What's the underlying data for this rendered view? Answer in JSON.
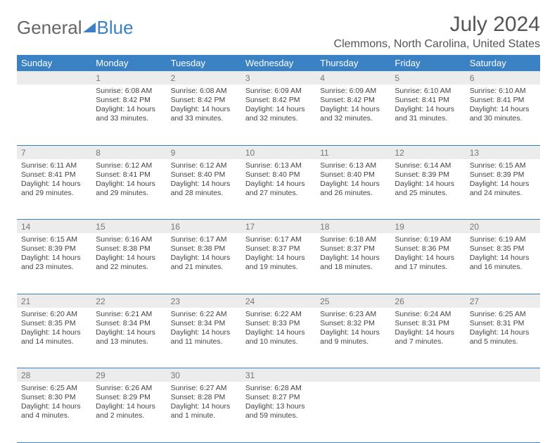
{
  "brand": {
    "general": "General",
    "blue": "Blue"
  },
  "title": {
    "month": "July 2024",
    "location": "Clemmons, North Carolina, United States"
  },
  "style": {
    "accent_color": "#3b82c4",
    "header_text_color": "#ffffff",
    "daynum_bg": "#ececec",
    "daynum_color": "#777777",
    "body_text_color": "#444444",
    "title_color": "#555555",
    "title_fontsize": 30,
    "location_fontsize": 16,
    "th_fontsize": 13,
    "cell_fontsize": 10.5
  },
  "weekdays": [
    "Sunday",
    "Monday",
    "Tuesday",
    "Wednesday",
    "Thursday",
    "Friday",
    "Saturday"
  ],
  "labels": {
    "sunrise": "Sunrise:",
    "sunset": "Sunset:",
    "daylight": "Daylight:"
  },
  "weeks": [
    [
      null,
      {
        "day": "1",
        "sunrise": "6:08 AM",
        "sunset": "8:42 PM",
        "daylight": "14 hours and 33 minutes."
      },
      {
        "day": "2",
        "sunrise": "6:08 AM",
        "sunset": "8:42 PM",
        "daylight": "14 hours and 33 minutes."
      },
      {
        "day": "3",
        "sunrise": "6:09 AM",
        "sunset": "8:42 PM",
        "daylight": "14 hours and 32 minutes."
      },
      {
        "day": "4",
        "sunrise": "6:09 AM",
        "sunset": "8:42 PM",
        "daylight": "14 hours and 32 minutes."
      },
      {
        "day": "5",
        "sunrise": "6:10 AM",
        "sunset": "8:41 PM",
        "daylight": "14 hours and 31 minutes."
      },
      {
        "day": "6",
        "sunrise": "6:10 AM",
        "sunset": "8:41 PM",
        "daylight": "14 hours and 30 minutes."
      }
    ],
    [
      {
        "day": "7",
        "sunrise": "6:11 AM",
        "sunset": "8:41 PM",
        "daylight": "14 hours and 29 minutes."
      },
      {
        "day": "8",
        "sunrise": "6:12 AM",
        "sunset": "8:41 PM",
        "daylight": "14 hours and 29 minutes."
      },
      {
        "day": "9",
        "sunrise": "6:12 AM",
        "sunset": "8:40 PM",
        "daylight": "14 hours and 28 minutes."
      },
      {
        "day": "10",
        "sunrise": "6:13 AM",
        "sunset": "8:40 PM",
        "daylight": "14 hours and 27 minutes."
      },
      {
        "day": "11",
        "sunrise": "6:13 AM",
        "sunset": "8:40 PM",
        "daylight": "14 hours and 26 minutes."
      },
      {
        "day": "12",
        "sunrise": "6:14 AM",
        "sunset": "8:39 PM",
        "daylight": "14 hours and 25 minutes."
      },
      {
        "day": "13",
        "sunrise": "6:15 AM",
        "sunset": "8:39 PM",
        "daylight": "14 hours and 24 minutes."
      }
    ],
    [
      {
        "day": "14",
        "sunrise": "6:15 AM",
        "sunset": "8:39 PM",
        "daylight": "14 hours and 23 minutes."
      },
      {
        "day": "15",
        "sunrise": "6:16 AM",
        "sunset": "8:38 PM",
        "daylight": "14 hours and 22 minutes."
      },
      {
        "day": "16",
        "sunrise": "6:17 AM",
        "sunset": "8:38 PM",
        "daylight": "14 hours and 21 minutes."
      },
      {
        "day": "17",
        "sunrise": "6:17 AM",
        "sunset": "8:37 PM",
        "daylight": "14 hours and 19 minutes."
      },
      {
        "day": "18",
        "sunrise": "6:18 AM",
        "sunset": "8:37 PM",
        "daylight": "14 hours and 18 minutes."
      },
      {
        "day": "19",
        "sunrise": "6:19 AM",
        "sunset": "8:36 PM",
        "daylight": "14 hours and 17 minutes."
      },
      {
        "day": "20",
        "sunrise": "6:19 AM",
        "sunset": "8:35 PM",
        "daylight": "14 hours and 16 minutes."
      }
    ],
    [
      {
        "day": "21",
        "sunrise": "6:20 AM",
        "sunset": "8:35 PM",
        "daylight": "14 hours and 14 minutes."
      },
      {
        "day": "22",
        "sunrise": "6:21 AM",
        "sunset": "8:34 PM",
        "daylight": "14 hours and 13 minutes."
      },
      {
        "day": "23",
        "sunrise": "6:22 AM",
        "sunset": "8:34 PM",
        "daylight": "14 hours and 11 minutes."
      },
      {
        "day": "24",
        "sunrise": "6:22 AM",
        "sunset": "8:33 PM",
        "daylight": "14 hours and 10 minutes."
      },
      {
        "day": "25",
        "sunrise": "6:23 AM",
        "sunset": "8:32 PM",
        "daylight": "14 hours and 9 minutes."
      },
      {
        "day": "26",
        "sunrise": "6:24 AM",
        "sunset": "8:31 PM",
        "daylight": "14 hours and 7 minutes."
      },
      {
        "day": "27",
        "sunrise": "6:25 AM",
        "sunset": "8:31 PM",
        "daylight": "14 hours and 5 minutes."
      }
    ],
    [
      {
        "day": "28",
        "sunrise": "6:25 AM",
        "sunset": "8:30 PM",
        "daylight": "14 hours and 4 minutes."
      },
      {
        "day": "29",
        "sunrise": "6:26 AM",
        "sunset": "8:29 PM",
        "daylight": "14 hours and 2 minutes."
      },
      {
        "day": "30",
        "sunrise": "6:27 AM",
        "sunset": "8:28 PM",
        "daylight": "14 hours and 1 minute."
      },
      {
        "day": "31",
        "sunrise": "6:28 AM",
        "sunset": "8:27 PM",
        "daylight": "13 hours and 59 minutes."
      },
      null,
      null,
      null
    ]
  ]
}
